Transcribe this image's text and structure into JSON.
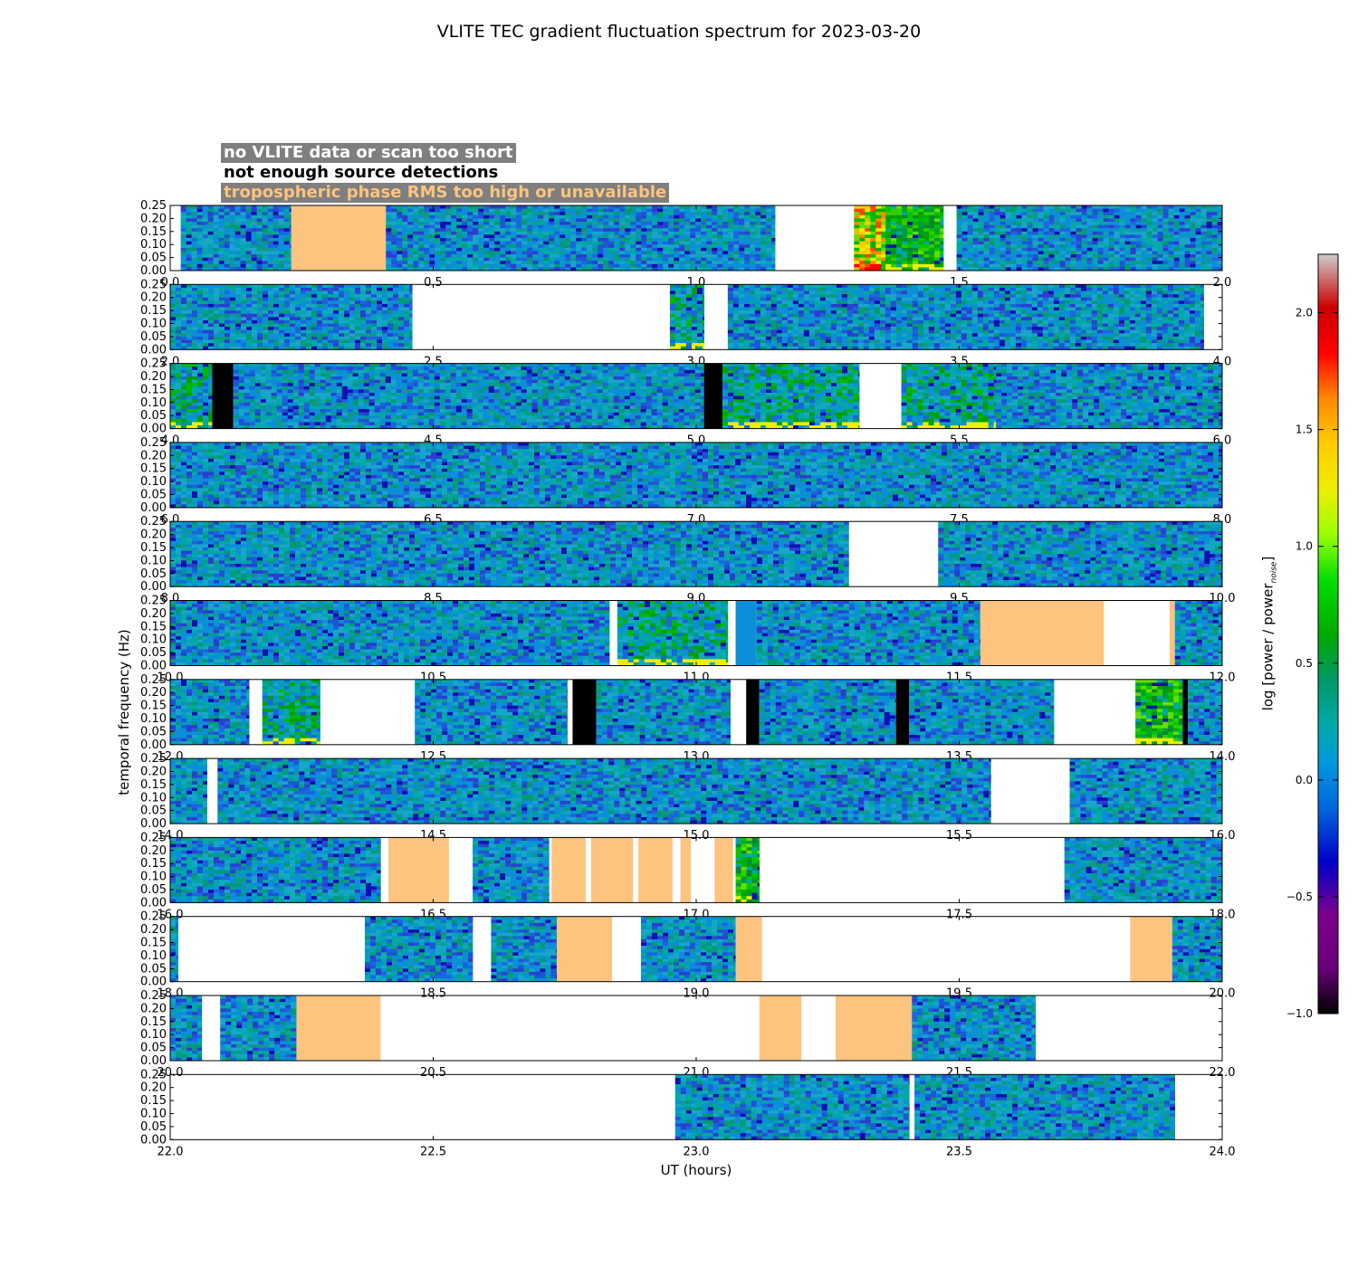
{
  "chart_data": {
    "type": "heatmap",
    "title": "VLITE TEC gradient fluctuation spectrum for 2023-03-20",
    "xlabel": "UT (hours)",
    "ylabel": "temporal frequency (Hz)",
    "colorbar": {
      "label": "log [power / power",
      "label_subscript": "noise",
      "label_suffix": "]",
      "range": [
        -1.0,
        2.25
      ],
      "ticks": [
        "−1.0",
        "−0.5",
        "0.0",
        "0.5",
        "1.0",
        "1.5",
        "2.0"
      ],
      "tick_values": [
        -1.0,
        -0.5,
        0.0,
        0.5,
        1.0,
        1.5,
        2.0
      ],
      "colormap": "nipy_spectral"
    },
    "ylim": [
      0,
      0.25
    ],
    "yticks": [
      "0.00",
      "0.05",
      "0.10",
      "0.15",
      "0.20",
      "0.25"
    ],
    "legend": [
      {
        "label": "no VLITE data or scan too short",
        "meaning": "blank",
        "color": "#ffffff"
      },
      {
        "label": "not enough source detections",
        "meaning": "black",
        "color": "#000000"
      },
      {
        "label": "tropospheric phase RMS too high or unavailable",
        "meaning": "orange",
        "color": "#fdc47f"
      }
    ],
    "panels": [
      {
        "xlim": [
          0,
          2
        ],
        "xticks": [
          "0.0",
          "0.5",
          "1.0",
          "1.5",
          "2.0"
        ],
        "segments": [
          {
            "type": "white",
            "x0": 0.0,
            "x1": 0.02
          },
          {
            "type": "data",
            "x0": 0.02,
            "x1": 0.23,
            "level": "normal"
          },
          {
            "type": "orange",
            "x0": 0.23,
            "x1": 0.41
          },
          {
            "type": "data",
            "x0": 0.41,
            "x1": 1.15,
            "level": "normal"
          },
          {
            "type": "white",
            "x0": 1.15,
            "x1": 1.3
          },
          {
            "type": "data",
            "x0": 1.3,
            "x1": 1.36,
            "level": "high"
          },
          {
            "type": "data",
            "x0": 1.36,
            "x1": 1.47,
            "level": "elevated"
          },
          {
            "type": "white",
            "x0": 1.47,
            "x1": 1.495
          },
          {
            "type": "data",
            "x0": 1.495,
            "x1": 2.0,
            "level": "normal"
          }
        ]
      },
      {
        "xlim": [
          2,
          4
        ],
        "xticks": [
          "2.0",
          "2.5",
          "3.0",
          "3.5",
          "4.0"
        ],
        "segments": [
          {
            "type": "data",
            "x0": 2.0,
            "x1": 2.46,
            "level": "normal"
          },
          {
            "type": "white",
            "x0": 2.46,
            "x1": 2.95
          },
          {
            "type": "data",
            "x0": 2.95,
            "x1": 3.015,
            "level": "mild"
          },
          {
            "type": "white",
            "x0": 3.015,
            "x1": 3.06
          },
          {
            "type": "data",
            "x0": 3.06,
            "x1": 3.965,
            "level": "normal"
          },
          {
            "type": "white",
            "x0": 3.965,
            "x1": 4.0
          }
        ]
      },
      {
        "xlim": [
          4,
          6
        ],
        "xticks": [
          "4.0",
          "4.5",
          "5.0",
          "5.5",
          "6.0"
        ],
        "segments": [
          {
            "type": "data",
            "x0": 4.0,
            "x1": 4.08,
            "level": "mild"
          },
          {
            "type": "black",
            "x0": 4.08,
            "x1": 4.12
          },
          {
            "type": "data",
            "x0": 4.12,
            "x1": 5.015,
            "level": "normal"
          },
          {
            "type": "black",
            "x0": 5.015,
            "x1": 5.05
          },
          {
            "type": "data",
            "x0": 5.05,
            "x1": 5.31,
            "level": "mild"
          },
          {
            "type": "white",
            "x0": 5.31,
            "x1": 5.39
          },
          {
            "type": "data",
            "x0": 5.39,
            "x1": 5.57,
            "level": "mild"
          },
          {
            "type": "data",
            "x0": 5.57,
            "x1": 6.0,
            "level": "normal"
          }
        ]
      },
      {
        "xlim": [
          6,
          8
        ],
        "xticks": [
          "6.0",
          "6.5",
          "7.0",
          "7.5",
          "8.0"
        ],
        "segments": [
          {
            "type": "data",
            "x0": 6.0,
            "x1": 8.0,
            "level": "normal"
          }
        ]
      },
      {
        "xlim": [
          8,
          10
        ],
        "xticks": [
          "8.0",
          "8.5",
          "9.0",
          "9.5",
          "10.0"
        ],
        "segments": [
          {
            "type": "data",
            "x0": 8.0,
            "x1": 9.29,
            "level": "normal"
          },
          {
            "type": "white",
            "x0": 9.29,
            "x1": 9.46
          },
          {
            "type": "data",
            "x0": 9.46,
            "x1": 10.0,
            "level": "normal"
          }
        ]
      },
      {
        "xlim": [
          10,
          12
        ],
        "xticks": [
          "10.0",
          "10.5",
          "11.0",
          "11.5",
          "12.0"
        ],
        "segments": [
          {
            "type": "data",
            "x0": 10.0,
            "x1": 10.835,
            "level": "normal"
          },
          {
            "type": "white",
            "x0": 10.835,
            "x1": 10.85
          },
          {
            "type": "data",
            "x0": 10.85,
            "x1": 11.06,
            "level": "mild"
          },
          {
            "type": "white",
            "x0": 11.06,
            "x1": 11.075
          },
          {
            "type": "flat",
            "x0": 11.075,
            "x1": 11.115
          },
          {
            "type": "data",
            "x0": 11.115,
            "x1": 11.54,
            "level": "normal"
          },
          {
            "type": "orange",
            "x0": 11.54,
            "x1": 11.775
          },
          {
            "type": "white",
            "x0": 11.775,
            "x1": 11.9
          },
          {
            "type": "orange",
            "x0": 11.9,
            "x1": 11.91
          },
          {
            "type": "data",
            "x0": 11.91,
            "x1": 12.0,
            "level": "normal"
          }
        ]
      },
      {
        "xlim": [
          12,
          14
        ],
        "xticks": [
          "12.0",
          "12.5",
          "13.0",
          "13.5",
          "14.0"
        ],
        "segments": [
          {
            "type": "data",
            "x0": 12.0,
            "x1": 12.15,
            "level": "normal"
          },
          {
            "type": "white",
            "x0": 12.15,
            "x1": 12.175
          },
          {
            "type": "data",
            "x0": 12.175,
            "x1": 12.285,
            "level": "mild"
          },
          {
            "type": "white",
            "x0": 12.285,
            "x1": 12.465
          },
          {
            "type": "data",
            "x0": 12.465,
            "x1": 12.755,
            "level": "normal"
          },
          {
            "type": "white",
            "x0": 12.755,
            "x1": 12.765
          },
          {
            "type": "black",
            "x0": 12.765,
            "x1": 12.81
          },
          {
            "type": "data",
            "x0": 12.81,
            "x1": 13.065,
            "level": "normal"
          },
          {
            "type": "white",
            "x0": 13.065,
            "x1": 13.095
          },
          {
            "type": "black",
            "x0": 13.095,
            "x1": 13.12
          },
          {
            "type": "data",
            "x0": 13.12,
            "x1": 13.38,
            "level": "normal"
          },
          {
            "type": "black",
            "x0": 13.38,
            "x1": 13.405
          },
          {
            "type": "data",
            "x0": 13.405,
            "x1": 13.68,
            "level": "normal"
          },
          {
            "type": "white",
            "x0": 13.68,
            "x1": 13.835
          },
          {
            "type": "data",
            "x0": 13.835,
            "x1": 13.925,
            "level": "elevated"
          },
          {
            "type": "black",
            "x0": 13.925,
            "x1": 13.935
          },
          {
            "type": "data",
            "x0": 13.935,
            "x1": 14.0,
            "level": "normal"
          }
        ]
      },
      {
        "xlim": [
          14,
          16
        ],
        "xticks": [
          "14.0",
          "14.5",
          "15.0",
          "15.5",
          "16.0"
        ],
        "segments": [
          {
            "type": "data",
            "x0": 14.0,
            "x1": 14.07,
            "level": "normal"
          },
          {
            "type": "white",
            "x0": 14.07,
            "x1": 14.09
          },
          {
            "type": "data",
            "x0": 14.09,
            "x1": 15.56,
            "level": "normal"
          },
          {
            "type": "white",
            "x0": 15.56,
            "x1": 15.71
          },
          {
            "type": "data",
            "x0": 15.71,
            "x1": 16.0,
            "level": "normal"
          }
        ]
      },
      {
        "xlim": [
          16,
          18
        ],
        "xticks": [
          "16.0",
          "16.5",
          "17.0",
          "17.5",
          "18.0"
        ],
        "segments": [
          {
            "type": "data",
            "x0": 16.0,
            "x1": 16.4,
            "level": "normal"
          },
          {
            "type": "white",
            "x0": 16.4,
            "x1": 16.415
          },
          {
            "type": "orange",
            "x0": 16.415,
            "x1": 16.53
          },
          {
            "type": "white",
            "x0": 16.53,
            "x1": 16.575
          },
          {
            "type": "data",
            "x0": 16.575,
            "x1": 16.72,
            "level": "normal"
          },
          {
            "type": "white",
            "x0": 16.72,
            "x1": 16.725
          },
          {
            "type": "orange",
            "x0": 16.725,
            "x1": 16.79
          },
          {
            "type": "white",
            "x0": 16.79,
            "x1": 16.8
          },
          {
            "type": "orange",
            "x0": 16.8,
            "x1": 16.88
          },
          {
            "type": "white",
            "x0": 16.88,
            "x1": 16.89
          },
          {
            "type": "orange",
            "x0": 16.89,
            "x1": 16.955
          },
          {
            "type": "white",
            "x0": 16.955,
            "x1": 16.97
          },
          {
            "type": "orange",
            "x0": 16.97,
            "x1": 16.99
          },
          {
            "type": "white",
            "x0": 16.99,
            "x1": 17.035
          },
          {
            "type": "orange",
            "x0": 17.035,
            "x1": 17.07
          },
          {
            "type": "white",
            "x0": 17.07,
            "x1": 17.075
          },
          {
            "type": "data",
            "x0": 17.075,
            "x1": 17.12,
            "level": "elevated"
          },
          {
            "type": "white",
            "x0": 17.12,
            "x1": 17.7
          },
          {
            "type": "data",
            "x0": 17.7,
            "x1": 18.0,
            "level": "normal"
          }
        ]
      },
      {
        "xlim": [
          18,
          20
        ],
        "xticks": [
          "18.0",
          "18.5",
          "19.0",
          "19.5",
          "20.0"
        ],
        "segments": [
          {
            "type": "data",
            "x0": 18.0,
            "x1": 18.015,
            "level": "normal"
          },
          {
            "type": "white",
            "x0": 18.015,
            "x1": 18.37
          },
          {
            "type": "data",
            "x0": 18.37,
            "x1": 18.575,
            "level": "normal"
          },
          {
            "type": "white",
            "x0": 18.575,
            "x1": 18.61
          },
          {
            "type": "data",
            "x0": 18.61,
            "x1": 18.735,
            "level": "normal"
          },
          {
            "type": "orange",
            "x0": 18.735,
            "x1": 18.84
          },
          {
            "type": "white",
            "x0": 18.84,
            "x1": 18.895
          },
          {
            "type": "data",
            "x0": 18.895,
            "x1": 19.075,
            "level": "normal"
          },
          {
            "type": "orange",
            "x0": 19.075,
            "x1": 19.125
          },
          {
            "type": "white",
            "x0": 19.125,
            "x1": 19.825
          },
          {
            "type": "orange",
            "x0": 19.825,
            "x1": 19.905
          },
          {
            "type": "data",
            "x0": 19.905,
            "x1": 20.0,
            "level": "normal"
          }
        ]
      },
      {
        "xlim": [
          20,
          22
        ],
        "xticks": [
          "20.0",
          "20.5",
          "21.0",
          "21.5",
          "22.0"
        ],
        "segments": [
          {
            "type": "data",
            "x0": 20.0,
            "x1": 20.06,
            "level": "normal"
          },
          {
            "type": "white",
            "x0": 20.06,
            "x1": 20.095
          },
          {
            "type": "data",
            "x0": 20.095,
            "x1": 20.24,
            "level": "normal"
          },
          {
            "type": "orange",
            "x0": 20.24,
            "x1": 20.4
          },
          {
            "type": "white",
            "x0": 20.4,
            "x1": 21.12
          },
          {
            "type": "orange",
            "x0": 21.12,
            "x1": 21.2
          },
          {
            "type": "white",
            "x0": 21.2,
            "x1": 21.265
          },
          {
            "type": "orange",
            "x0": 21.265,
            "x1": 21.41
          },
          {
            "type": "data",
            "x0": 21.41,
            "x1": 21.645,
            "level": "normal"
          },
          {
            "type": "white",
            "x0": 21.645,
            "x1": 22.0
          }
        ]
      },
      {
        "xlim": [
          22,
          24
        ],
        "xticks": [
          "22.0",
          "22.5",
          "23.0",
          "23.5",
          "24.0"
        ],
        "segments": [
          {
            "type": "white",
            "x0": 22.0,
            "x1": 22.96
          },
          {
            "type": "data",
            "x0": 22.96,
            "x1": 23.405,
            "level": "normal"
          },
          {
            "type": "white",
            "x0": 23.405,
            "x1": 23.415
          },
          {
            "type": "data",
            "x0": 23.415,
            "x1": 23.91,
            "level": "normal"
          },
          {
            "type": "white",
            "x0": 23.91,
            "x1": 24.0
          }
        ]
      }
    ]
  }
}
